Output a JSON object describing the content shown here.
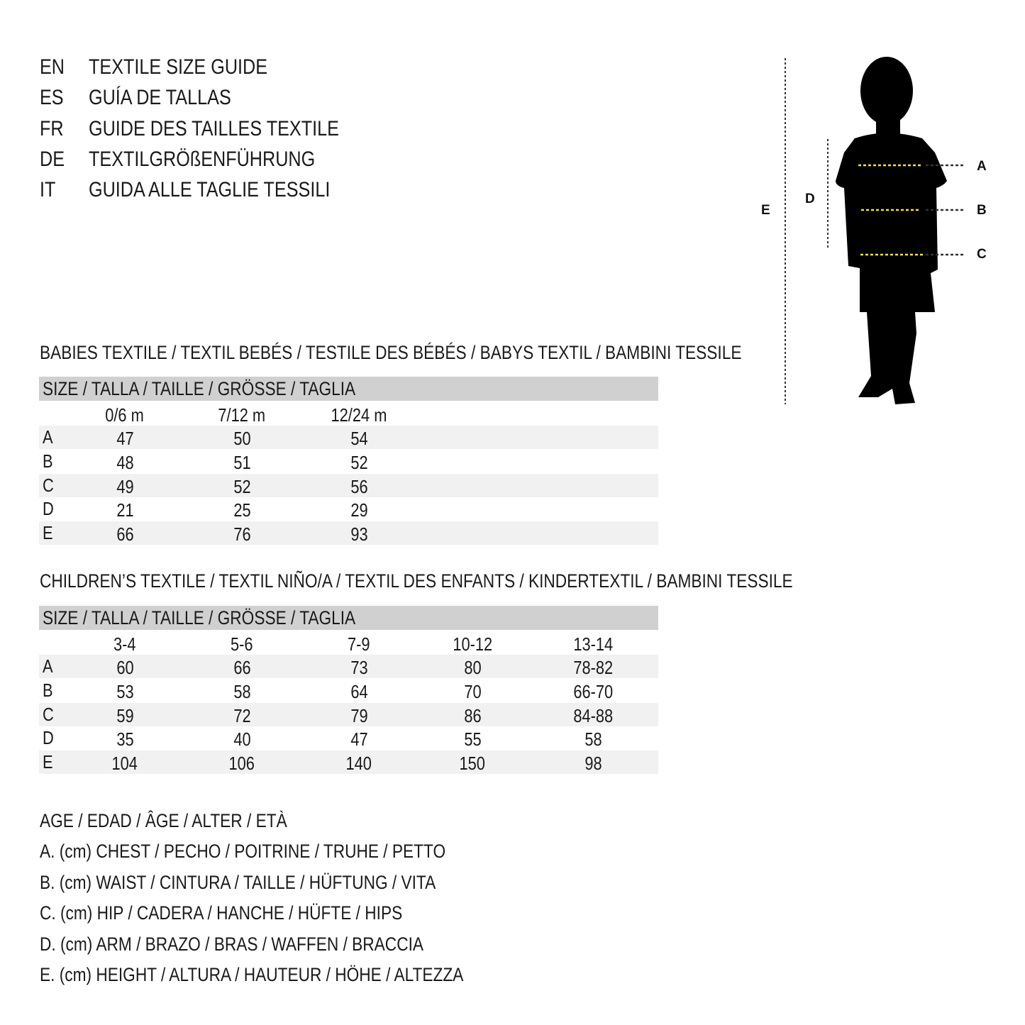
{
  "header": {
    "languages": [
      {
        "code": "EN",
        "title": "TEXTILE SIZE GUIDE"
      },
      {
        "code": "ES",
        "title": "GUÍA DE TALLAS"
      },
      {
        "code": "FR",
        "title": "GUIDE DES TAILLES TEXTILE"
      },
      {
        "code": "DE",
        "title": "TEXTILGRÖßENFÜHRUNG"
      },
      {
        "code": "IT",
        "title": "GUIDA ALLE TAGLIE TESSILI"
      }
    ]
  },
  "figure": {
    "labels": {
      "A": "A",
      "B": "B",
      "C": "C",
      "D": "D",
      "E": "E"
    },
    "colors": {
      "silhouette": "#000000",
      "measure_line": "#f2e14a"
    }
  },
  "babies": {
    "title": "BABIES TEXTILE / TEXTIL BEBÉS / TESTILE DES BÉBÉS / BABYS TEXTIL / BAMBINI TESSILE",
    "size_header": "SIZE / TALLA / TAILLE / GRÖSSE / TAGLIA",
    "columns": [
      "0/6 m",
      "7/12 m",
      "12/24 m"
    ],
    "rows": [
      {
        "label": "A",
        "values": [
          "47",
          "50",
          "54"
        ]
      },
      {
        "label": "B",
        "values": [
          "48",
          "51",
          "52"
        ]
      },
      {
        "label": "C",
        "values": [
          "49",
          "52",
          "56"
        ]
      },
      {
        "label": "D",
        "values": [
          "21",
          "25",
          "29"
        ]
      },
      {
        "label": "E",
        "values": [
          "66",
          "76",
          "93"
        ]
      }
    ]
  },
  "children": {
    "title": "CHILDREN’S TEXTILE / TEXTIL NIÑO/A / TEXTIL DES ENFANTS / KINDERTEXTIL / BAMBINI TESSILE",
    "size_header": "SIZE / TALLA / TAILLE / GRÖSSE / TAGLIA",
    "columns": [
      "3-4",
      "5-6",
      "7-9",
      "10-12",
      "13-14"
    ],
    "rows": [
      {
        "label": "A",
        "values": [
          "60",
          "66",
          "73",
          "80",
          "78-82"
        ]
      },
      {
        "label": "B",
        "values": [
          "53",
          "58",
          "64",
          "70",
          "66-70"
        ]
      },
      {
        "label": "C",
        "values": [
          "59",
          "72",
          "79",
          "86",
          "84-88"
        ]
      },
      {
        "label": "D",
        "values": [
          "35",
          "40",
          "47",
          "55",
          "58"
        ]
      },
      {
        "label": "E",
        "values": [
          "104",
          "106",
          "140",
          "150",
          "98"
        ]
      }
    ]
  },
  "legend": [
    "AGE / EDAD / ÂGE / ALTER / ETÀ",
    "A. (cm) CHEST / PECHO / POITRINE / TRUHE / PETTO",
    "B. (cm) WAIST / CINTURA / TAILLE / HÜFTUNG / VITA",
    "C. (cm) HIP / CADERA / HANCHE / HÜFTE / HIPS",
    "D. (cm) ARM / BRAZO / BRAS / WAFFEN / BRACCIA",
    "E. (cm) HEIGHT / ALTURA / HAUTEUR / HÖHE / ALTEZZA"
  ]
}
